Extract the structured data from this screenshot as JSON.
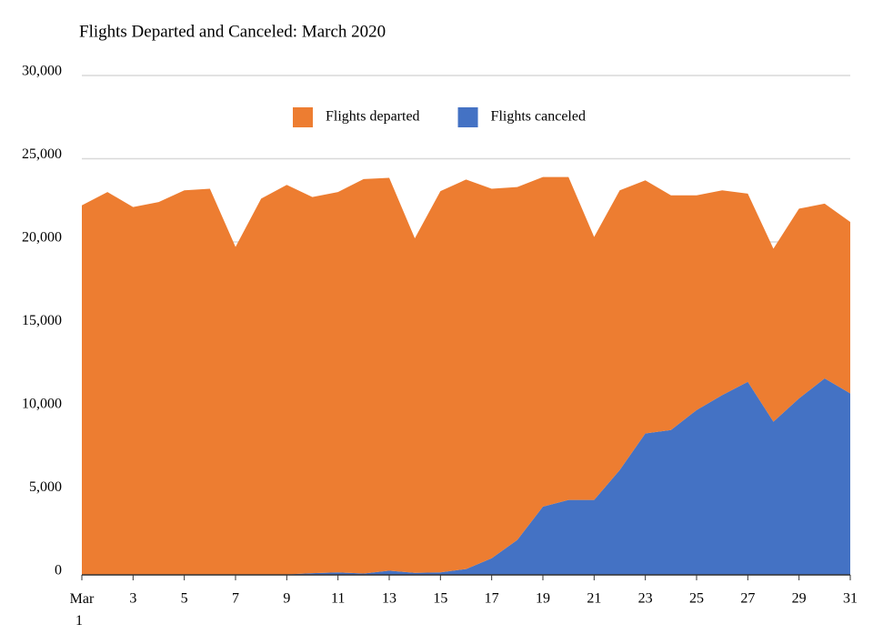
{
  "chart_data": {
    "type": "stacked-area",
    "title": "Flights Departed and Canceled: March 2020",
    "x": [
      1,
      2,
      3,
      4,
      5,
      6,
      7,
      8,
      9,
      10,
      11,
      12,
      13,
      14,
      15,
      16,
      17,
      18,
      19,
      20,
      21,
      22,
      23,
      24,
      25,
      26,
      27,
      28,
      29,
      30,
      31
    ],
    "series": [
      {
        "name": "Flights canceled",
        "color": "#4472c4",
        "values": [
          0,
          0,
          0,
          0,
          0,
          0,
          0,
          0,
          30,
          100,
          150,
          80,
          250,
          120,
          150,
          350,
          1000,
          2100,
          4100,
          4500,
          4500,
          6300,
          8500,
          8700,
          9900,
          10800,
          11600,
          9200,
          10600,
          11800,
          10900
        ]
      },
      {
        "name": "Flights departed",
        "color": "#ed7d31",
        "values": [
          22200,
          23000,
          22100,
          22400,
          23100,
          23200,
          19700,
          22600,
          23400,
          22600,
          22850,
          23700,
          23600,
          20100,
          22900,
          23400,
          22200,
          21200,
          19800,
          19400,
          15800,
          16800,
          15200,
          14100,
          12900,
          12300,
          11300,
          10400,
          11400,
          10500,
          10300
        ]
      }
    ],
    "xlim": [
      1,
      31
    ],
    "xticks": [
      {
        "value": 1,
        "label": "Mar 1"
      },
      3,
      5,
      7,
      9,
      11,
      13,
      15,
      17,
      19,
      21,
      23,
      25,
      27,
      29,
      31
    ],
    "ylim": [
      0,
      30000
    ],
    "yticks": [
      0,
      {
        "value": 5000,
        "label": "5,000"
      },
      {
        "value": 10000,
        "label": "10,000"
      },
      {
        "value": 15000,
        "label": "15,000"
      },
      {
        "value": 20000,
        "label": "20,000"
      },
      {
        "value": 25000,
        "label": "25,000"
      },
      {
        "value": 30000,
        "label": "30,000"
      }
    ],
    "grid": true
  }
}
